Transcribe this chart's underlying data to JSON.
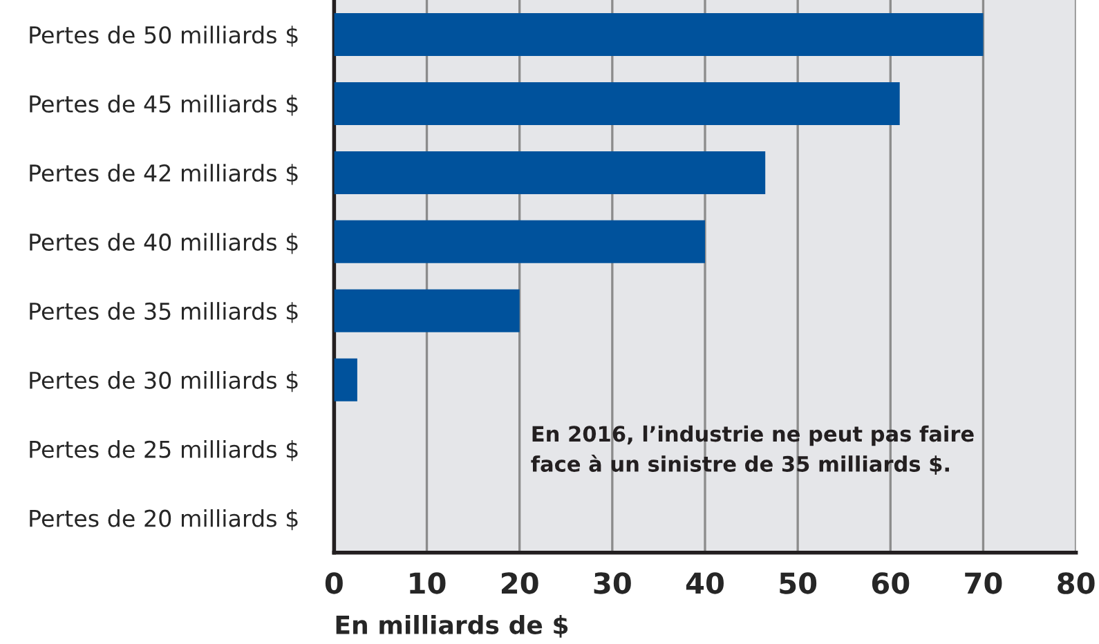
{
  "chart_data": {
    "type": "bar",
    "orientation": "horizontal",
    "xlabel": "En milliards de $",
    "categories": [
      "Pertes de 50 milliards $",
      "Pertes de 45 milliards $",
      "Pertes de 42 milliards $",
      "Pertes de 40 milliards $",
      "Pertes de 35 milliards $",
      "Pertes de 30 milliards $",
      "Pertes de 25 milliards $",
      "Pertes de 20 milliards $"
    ],
    "values": [
      70,
      61,
      46.5,
      40,
      20,
      2.5,
      0,
      0
    ],
    "color": "#00529c",
    "xlim": [
      0,
      80
    ],
    "xticks": [
      0,
      10,
      20,
      30,
      40,
      50,
      60,
      70,
      80
    ],
    "grid": "x",
    "annotations": [
      "En 2016, l’industrie ne peut pas faire\nface à un sinistre de 35 milliards $."
    ]
  }
}
